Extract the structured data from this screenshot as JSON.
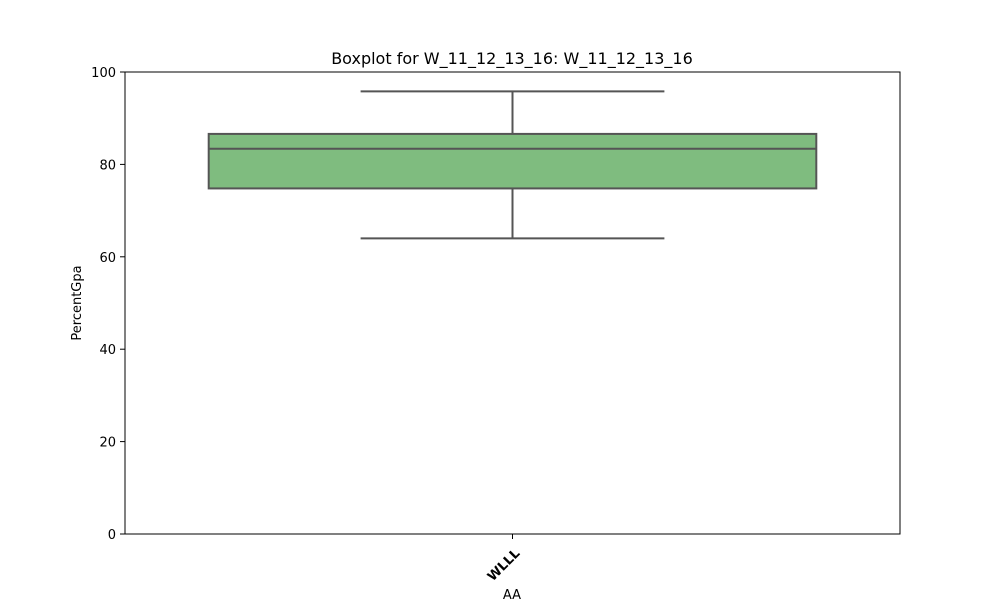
{
  "chart_data": {
    "type": "boxplot",
    "title": "Boxplot for W_11_12_13_16: W_11_12_13_16",
    "xlabel": "AA",
    "ylabel": "PercentGpa",
    "ylim": [
      0,
      100
    ],
    "yticks": [
      0,
      20,
      40,
      60,
      80,
      100
    ],
    "grid": false,
    "categories": [
      "WLLL"
    ],
    "boxes": [
      {
        "category": "WLLL",
        "whisker_low": 64.0,
        "q1": 74.8,
        "median": 83.4,
        "q3": 86.6,
        "whisker_high": 95.8
      }
    ],
    "colors": {
      "box_fill": "#7fbc7f",
      "line": "#555555"
    }
  }
}
